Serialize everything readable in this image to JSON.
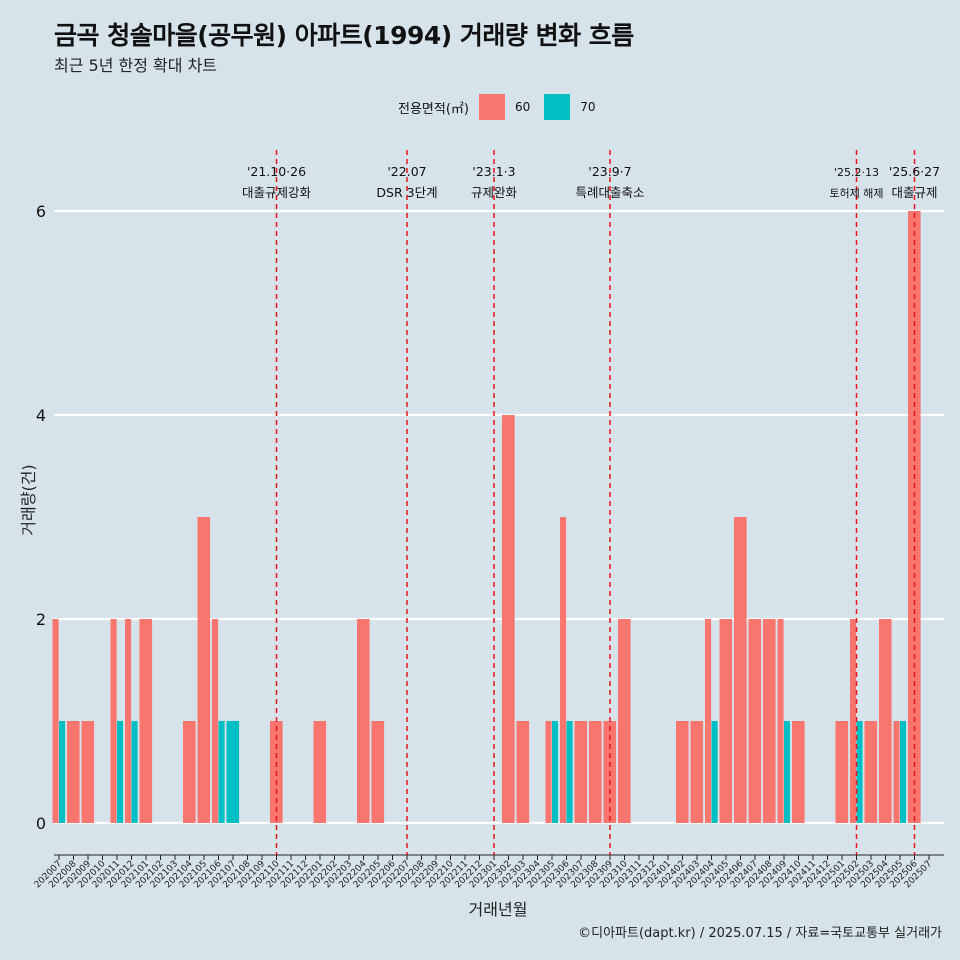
{
  "title": "금곡 청솔마을(공무원) 아파트(1994) 거래량 변화 흐름",
  "subtitle": "최근 5년 한정 확대 차트",
  "caption": "©디아파트(dapt.kr) / 2025.07.15 / 자료=국토교통부 실거래가",
  "legend": {
    "title": "전용면적(㎡)",
    "items": [
      {
        "label": "60",
        "color": "#F8766D"
      },
      {
        "label": "70",
        "color": "#00BFC4"
      }
    ]
  },
  "chart_data": {
    "type": "bar",
    "xlabel": "거래년월",
    "ylabel": "거래량(건)",
    "ylim": [
      0,
      6
    ],
    "yticks": [
      0,
      2,
      4,
      6
    ],
    "categories": [
      "202007",
      "202008",
      "202009",
      "202010",
      "202011",
      "202012",
      "202101",
      "202102",
      "202103",
      "202104",
      "202105",
      "202106",
      "202107",
      "202108",
      "202109",
      "202110",
      "202111",
      "202112",
      "202201",
      "202202",
      "202203",
      "202204",
      "202205",
      "202206",
      "202207",
      "202208",
      "202209",
      "202210",
      "202211",
      "202212",
      "202301",
      "202302",
      "202303",
      "202304",
      "202305",
      "202306",
      "202307",
      "202308",
      "202309",
      "202310",
      "202311",
      "202312",
      "202401",
      "202402",
      "202403",
      "202404",
      "202405",
      "202406",
      "202407",
      "202408",
      "202409",
      "202410",
      "202411",
      "202412",
      "202501",
      "202502",
      "202503",
      "202504",
      "202505",
      "202506",
      "202507"
    ],
    "series": [
      {
        "name": "60",
        "color": "#F8766D",
        "values": [
          2,
          1,
          1,
          0,
          2,
          2,
          2,
          0,
          0,
          1,
          3,
          2,
          0,
          0,
          0,
          1,
          0,
          0,
          1,
          0,
          0,
          2,
          1,
          0,
          0,
          0,
          0,
          0,
          0,
          0,
          0,
          4,
          1,
          0,
          1,
          3,
          1,
          1,
          1,
          2,
          0,
          0,
          0,
          1,
          1,
          2,
          2,
          3,
          2,
          2,
          2,
          1,
          0,
          0,
          1,
          2,
          1,
          2,
          1,
          6,
          0
        ]
      },
      {
        "name": "70",
        "color": "#00BFC4",
        "values": [
          1,
          0,
          0,
          0,
          1,
          1,
          0,
          0,
          0,
          0,
          0,
          1,
          1,
          0,
          0,
          0,
          0,
          0,
          0,
          0,
          0,
          0,
          0,
          0,
          0,
          0,
          0,
          0,
          0,
          0,
          0,
          0,
          0,
          0,
          1,
          1,
          0,
          0,
          0,
          0,
          0,
          0,
          0,
          0,
          0,
          1,
          0,
          0,
          0,
          0,
          1,
          0,
          0,
          0,
          0,
          1,
          0,
          0,
          1,
          0,
          0
        ]
      }
    ],
    "events": [
      {
        "date": "'21.10·26",
        "label": "대출규제강화",
        "month": "202110"
      },
      {
        "date": "'22.07",
        "label": "DSR 3단계",
        "month": "202207"
      },
      {
        "date": "'23.1·3",
        "label": "규제완화",
        "month": "202301"
      },
      {
        "date": "'23.9·7",
        "label": "특례대출축소",
        "month": "202309"
      },
      {
        "date": "'25.2·13",
        "label": "토허제 해제",
        "month": "202502"
      },
      {
        "date": "'25.6·27",
        "label": "대출규제",
        "month": "202506"
      }
    ],
    "grid": "horizontal major lines only"
  }
}
